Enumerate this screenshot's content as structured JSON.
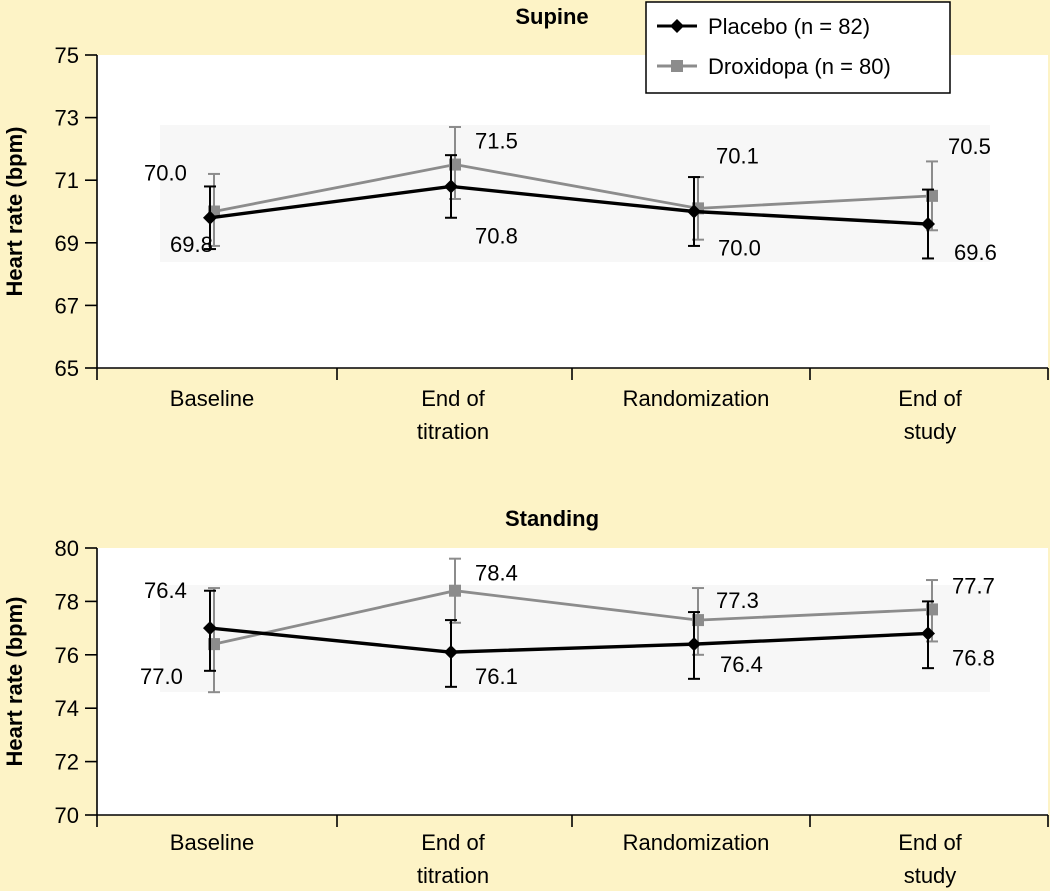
{
  "chart_data": [
    {
      "type": "line",
      "title": "Supine",
      "ylabel": "Heart rate (bpm)",
      "categories": [
        [
          "Baseline"
        ],
        [
          "End of",
          "titration"
        ],
        [
          "Randomization"
        ],
        [
          "End of",
          "study"
        ]
      ],
      "ylim": [
        65,
        75
      ],
      "yticks": [
        65,
        67,
        69,
        71,
        73,
        75
      ],
      "legend": "top-right",
      "series": [
        {
          "name": "Placebo (n = 82)",
          "color": "#000000",
          "marker": "diamond",
          "values": [
            69.8,
            70.8,
            70.0,
            69.6
          ],
          "error_low": [
            68.8,
            69.8,
            68.9,
            68.5
          ],
          "error_high": [
            70.8,
            71.8,
            71.1,
            70.7
          ],
          "labels": [
            "69.8",
            "70.8",
            "70.0",
            "69.6"
          ]
        },
        {
          "name": "Droxidopa (n = 80)",
          "color": "#8c8c8c",
          "marker": "square",
          "values": [
            70.0,
            71.5,
            70.1,
            70.5
          ],
          "error_low": [
            68.9,
            70.4,
            69.1,
            69.4
          ],
          "error_high": [
            71.2,
            72.7,
            71.1,
            71.6
          ],
          "labels": [
            "70.0",
            "71.5",
            "70.1",
            "70.5"
          ]
        }
      ]
    },
    {
      "type": "line",
      "title": "Standing",
      "ylabel": "Heart rate (bpm)",
      "categories": [
        [
          "Baseline"
        ],
        [
          "End of",
          "titration"
        ],
        [
          "Randomization"
        ],
        [
          "End of",
          "study"
        ]
      ],
      "ylim": [
        70,
        80
      ],
      "yticks": [
        70,
        72,
        74,
        76,
        78,
        80
      ],
      "series": [
        {
          "name": "Placebo (n = 82)",
          "color": "#000000",
          "marker": "diamond",
          "values": [
            77.0,
            76.1,
            76.4,
            76.8
          ],
          "error_low": [
            75.4,
            74.8,
            75.1,
            75.5
          ],
          "error_high": [
            78.4,
            77.3,
            77.6,
            78.0
          ],
          "labels": [
            "77.0",
            "76.1",
            "76.4",
            "76.8"
          ]
        },
        {
          "name": "Droxidopa (n = 80)",
          "color": "#8c8c8c",
          "marker": "square",
          "values": [
            76.4,
            78.4,
            77.3,
            77.7
          ],
          "error_low": [
            74.6,
            77.2,
            76.0,
            76.5
          ],
          "error_high": [
            78.5,
            79.6,
            78.5,
            78.8
          ],
          "labels": [
            "76.4",
            "78.4",
            "77.3",
            "77.7"
          ]
        }
      ]
    }
  ]
}
